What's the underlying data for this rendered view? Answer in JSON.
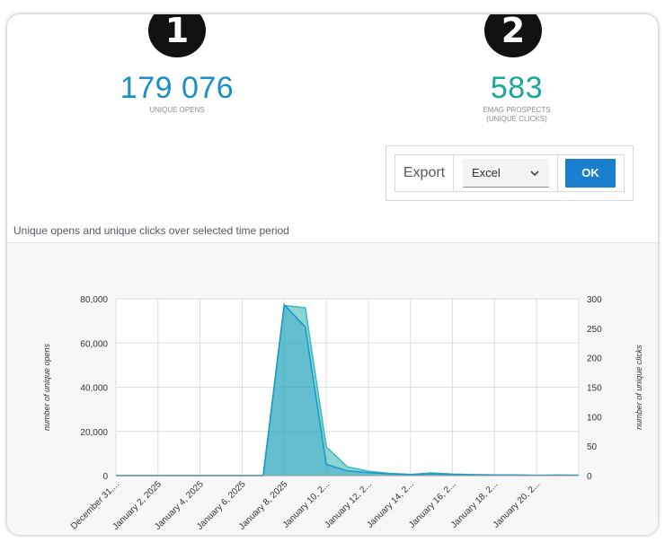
{
  "badges": {
    "first": "1",
    "second": "2"
  },
  "metrics": {
    "unique_opens": {
      "value": "179 076",
      "label": "UNIQUE OPENS",
      "color": "#1a8fc5"
    },
    "prospects": {
      "value": "583",
      "label_line1": "EMAG PROSPECTS",
      "label_line2": "(UNIQUE CLICKS)",
      "color": "#17a89a"
    }
  },
  "export": {
    "label": "Export",
    "selected": "Excel",
    "ok_label": "OK"
  },
  "chart_title": "Unique opens and unique clicks over selected time period",
  "chart_data": {
    "type": "area",
    "left_axis": {
      "label": "number of unique opens",
      "ticks": [
        "0",
        "20,000",
        "40,000",
        "60,000",
        "80,000"
      ],
      "range": [
        0,
        80000
      ]
    },
    "right_axis": {
      "label": "number of unique clicks",
      "ticks": [
        "0",
        "50",
        "100",
        "150",
        "200",
        "250",
        "300"
      ],
      "range": [
        0,
        300
      ]
    },
    "x_tick_labels": [
      "December 31,...",
      "January 2, 2025",
      "January 4, 2025",
      "January 6, 2025",
      "January 8, 2025",
      "January 10, 2...",
      "January 12, 2...",
      "January 14, 2...",
      "January 16, 2...",
      "January 18, 2...",
      "January 20, 2..."
    ],
    "x_days": [
      0,
      1,
      2,
      3,
      4,
      5,
      6,
      7,
      8,
      9,
      10,
      11,
      12,
      13,
      14,
      15,
      16,
      17,
      18,
      19,
      20,
      21,
      22
    ],
    "series": [
      {
        "axis": "left",
        "color": "#3cb9b9",
        "values": [
          0,
          0,
          0,
          0,
          0,
          0,
          0,
          0,
          77000,
          76000,
          13000,
          4000,
          2000,
          1000,
          500,
          1200,
          700,
          400,
          300,
          200,
          150,
          300,
          200
        ]
      },
      {
        "axis": "right",
        "color": "#1a97c7",
        "values": [
          0,
          0,
          0,
          0,
          0,
          0,
          0,
          0,
          290,
          252,
          19,
          8,
          5,
          3,
          2,
          3,
          2,
          1.5,
          1,
          1,
          0.5,
          0.5,
          0.5
        ]
      }
    ]
  }
}
